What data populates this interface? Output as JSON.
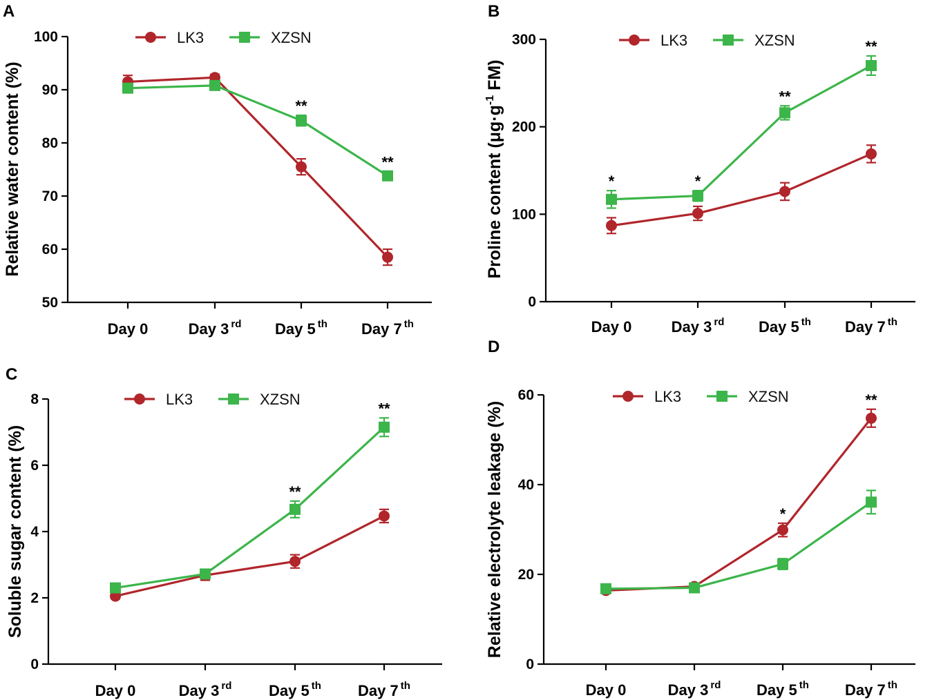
{
  "colors": {
    "LK3": "#b0262b",
    "XZSN": "#3cb54a",
    "axis": "#000000"
  },
  "chart_data": [
    {
      "panel": "A",
      "type": "line",
      "ylabel": "Relative water content (%)",
      "ylim": [
        50,
        100
      ],
      "yticks": [
        "50",
        "60",
        "70",
        "80",
        "90",
        "100"
      ],
      "categories": [
        {
          "base": "Day 0",
          "sup": ""
        },
        {
          "base": "Day 3",
          "sup": "rd"
        },
        {
          "base": "Day 5",
          "sup": "th"
        },
        {
          "base": "Day 7",
          "sup": "th"
        }
      ],
      "legend": [
        "LK3",
        "XZSN"
      ],
      "series": [
        {
          "name": "LK3",
          "marker": "circle",
          "values": [
            91.5,
            92.3,
            75.5,
            58.5
          ],
          "errors": [
            1.2,
            0.6,
            1.5,
            1.5
          ]
        },
        {
          "name": "XZSN",
          "marker": "square",
          "values": [
            90.3,
            90.8,
            84.2,
            73.8
          ],
          "errors": [
            0.6,
            0.6,
            1.0,
            0.8
          ]
        }
      ],
      "significance": [
        {
          "index": 2,
          "text": "**",
          "series": "XZSN"
        },
        {
          "index": 3,
          "text": "**",
          "series": "XZSN"
        }
      ]
    },
    {
      "panel": "B",
      "type": "line",
      "ylabel": "Proline content (μg·g",
      "ylabel_sup": "-1",
      "ylabel_tail": " FM)",
      "ylim": [
        0,
        300
      ],
      "yticks": [
        "0",
        "100",
        "200",
        "300"
      ],
      "categories": [
        {
          "base": "Day 0",
          "sup": ""
        },
        {
          "base": "Day 3",
          "sup": "rd"
        },
        {
          "base": "Day 5",
          "sup": "th"
        },
        {
          "base": "Day 7",
          "sup": "th"
        }
      ],
      "legend": [
        "LK3",
        "XZSN"
      ],
      "series": [
        {
          "name": "LK3",
          "marker": "circle",
          "values": [
            87,
            101,
            126,
            169
          ],
          "errors": [
            9,
            8,
            10,
            10
          ]
        },
        {
          "name": "XZSN",
          "marker": "square",
          "values": [
            117,
            121,
            216,
            270
          ],
          "errors": [
            10,
            6,
            8,
            11
          ]
        }
      ],
      "significance": [
        {
          "index": 0,
          "text": "*",
          "series": "XZSN"
        },
        {
          "index": 1,
          "text": "*",
          "series": "XZSN"
        },
        {
          "index": 2,
          "text": "**",
          "series": "XZSN"
        },
        {
          "index": 3,
          "text": "**",
          "series": "XZSN"
        }
      ]
    },
    {
      "panel": "C",
      "type": "line",
      "ylabel": "Soluble sugar content (%)",
      "ylim": [
        0,
        8
      ],
      "yticks": [
        "0",
        "2",
        "4",
        "6",
        "8"
      ],
      "categories": [
        {
          "base": "Day 0",
          "sup": ""
        },
        {
          "base": "Day 3",
          "sup": "rd"
        },
        {
          "base": "Day 5",
          "sup": "th"
        },
        {
          "base": "Day 7",
          "sup": "th"
        }
      ],
      "legend": [
        "LK3",
        "XZSN"
      ],
      "series": [
        {
          "name": "LK3",
          "marker": "circle",
          "values": [
            2.05,
            2.68,
            3.1,
            4.47
          ],
          "errors": [
            0.08,
            0.15,
            0.2,
            0.2
          ]
        },
        {
          "name": "XZSN",
          "marker": "square",
          "values": [
            2.3,
            2.72,
            4.67,
            7.15
          ],
          "errors": [
            0.08,
            0.1,
            0.25,
            0.28
          ]
        }
      ],
      "significance": [
        {
          "index": 2,
          "text": "**",
          "series": "XZSN"
        },
        {
          "index": 3,
          "text": "**",
          "series": "XZSN"
        }
      ]
    },
    {
      "panel": "D",
      "type": "line",
      "ylabel": "Relative electrolyte leakage (%)",
      "ylim": [
        0,
        60
      ],
      "yticks": [
        "0",
        "20",
        "40",
        "60"
      ],
      "categories": [
        {
          "base": "Day 0",
          "sup": ""
        },
        {
          "base": "Day 3",
          "sup": "rd"
        },
        {
          "base": "Day 5",
          "sup": "th"
        },
        {
          "base": "Day 7",
          "sup": "th"
        }
      ],
      "legend": [
        "LK3",
        "XZSN"
      ],
      "series": [
        {
          "name": "LK3",
          "marker": "circle",
          "values": [
            16.4,
            17.3,
            29.9,
            54.8
          ],
          "errors": [
            0.6,
            0.5,
            1.5,
            2.0
          ]
        },
        {
          "name": "XZSN",
          "marker": "square",
          "values": [
            16.8,
            17.0,
            22.3,
            36.1
          ],
          "errors": [
            0.5,
            0.5,
            1.2,
            2.6
          ]
        }
      ],
      "significance": [
        {
          "index": 2,
          "text": "*",
          "series": "LK3"
        },
        {
          "index": 3,
          "text": "**",
          "series": "LK3"
        }
      ]
    }
  ]
}
